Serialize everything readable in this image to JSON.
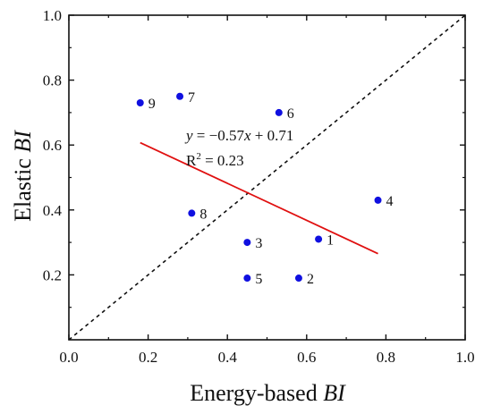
{
  "chart_data": {
    "type": "scatter",
    "title": "",
    "xlabel": "Energy-based ",
    "xlabel_italic": "BI",
    "ylabel": "Elastic ",
    "ylabel_italic": "BI",
    "xlim": [
      0.0,
      1.0
    ],
    "ylim": [
      0.0,
      1.0
    ],
    "xticks": [
      "0.0",
      "0.2",
      "0.4",
      "0.6",
      "0.8",
      "1.0"
    ],
    "yticks": [
      "0.2",
      "0.4",
      "0.6",
      "0.8",
      "1.0"
    ],
    "grid": false,
    "point_color": "#1010e0",
    "points": [
      {
        "label": "1",
        "x": 0.63,
        "y": 0.31
      },
      {
        "label": "2",
        "x": 0.58,
        "y": 0.19
      },
      {
        "label": "3",
        "x": 0.45,
        "y": 0.3
      },
      {
        "label": "4",
        "x": 0.78,
        "y": 0.43
      },
      {
        "label": "5",
        "x": 0.45,
        "y": 0.19
      },
      {
        "label": "6",
        "x": 0.53,
        "y": 0.7
      },
      {
        "label": "7",
        "x": 0.28,
        "y": 0.75
      },
      {
        "label": "8",
        "x": 0.31,
        "y": 0.39
      },
      {
        "label": "9",
        "x": 0.18,
        "y": 0.73
      }
    ],
    "fit_line": {
      "slope": -0.57,
      "intercept": 0.71,
      "x_range": [
        0.18,
        0.78
      ],
      "color": "#e01010"
    },
    "reference_line": {
      "style": "dashed",
      "from": [
        0.0,
        0.0
      ],
      "to": [
        1.0,
        1.0
      ]
    },
    "equation": {
      "y": "y",
      "rest": " = −0.57",
      "x": "x",
      "tail": " + 0.71"
    },
    "r_squared": {
      "r": "R",
      "sup": "2",
      "rest": " = 0.23"
    }
  }
}
